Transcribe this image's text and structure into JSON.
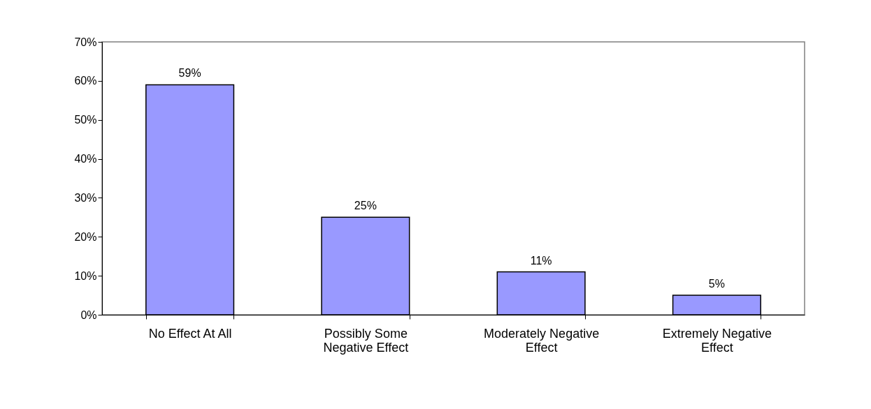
{
  "chart_data": {
    "type": "bar",
    "categories": [
      "No Effect At All",
      "Possibly Some Negative Effect",
      "Moderately Negative Effect",
      "Extremely Negative Effect"
    ],
    "values": [
      59,
      25,
      11,
      5
    ],
    "value_labels": [
      "59%",
      "25%",
      "11%",
      "5%"
    ],
    "color": "#9999ff",
    "ylim": [
      0,
      70
    ],
    "yticks": [
      {
        "value": 0,
        "label": "0%"
      },
      {
        "value": 10,
        "label": "10%"
      },
      {
        "value": 20,
        "label": "20%"
      },
      {
        "value": 30,
        "label": "30%"
      },
      {
        "value": 40,
        "label": "40%"
      },
      {
        "value": 50,
        "label": "50%"
      },
      {
        "value": 60,
        "label": "60%"
      },
      {
        "value": 70,
        "label": "70%"
      }
    ],
    "grid": false
  }
}
